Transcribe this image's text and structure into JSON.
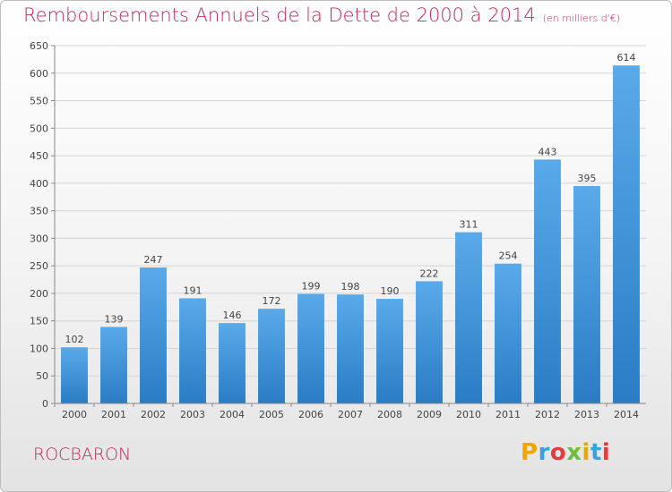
{
  "header": {
    "title": "Remboursements Annuels de la Dette de 2000 à 2014",
    "unit": "(en milliers d'€)"
  },
  "footer": {
    "commune": "ROCBARON",
    "logo_text": "Proxiti",
    "logo_colors": [
      "#f0a500",
      "#3aa0e0",
      "#e23c3c",
      "#6cbf3c",
      "#f0a500",
      "#3aa0e0",
      "#e23c3c"
    ]
  },
  "chart_data": {
    "type": "bar",
    "title": "Remboursements Annuels de la Dette de 2000 à 2014",
    "categories": [
      "2000",
      "2001",
      "2002",
      "2003",
      "2004",
      "2005",
      "2006",
      "2007",
      "2008",
      "2009",
      "2010",
      "2011",
      "2012",
      "2013",
      "2014"
    ],
    "values": [
      102,
      139,
      247,
      191,
      146,
      172,
      199,
      198,
      190,
      222,
      311,
      254,
      443,
      395,
      614
    ],
    "data_labels": [
      "102",
      "139",
      "247",
      "191",
      "146",
      "172",
      "199",
      "198",
      "190",
      "222",
      "311",
      "254",
      "443",
      "395",
      "614"
    ],
    "ylim": [
      0,
      650
    ],
    "ytick_step": 50,
    "grid": true,
    "bar_color": "#3a8fd6"
  }
}
